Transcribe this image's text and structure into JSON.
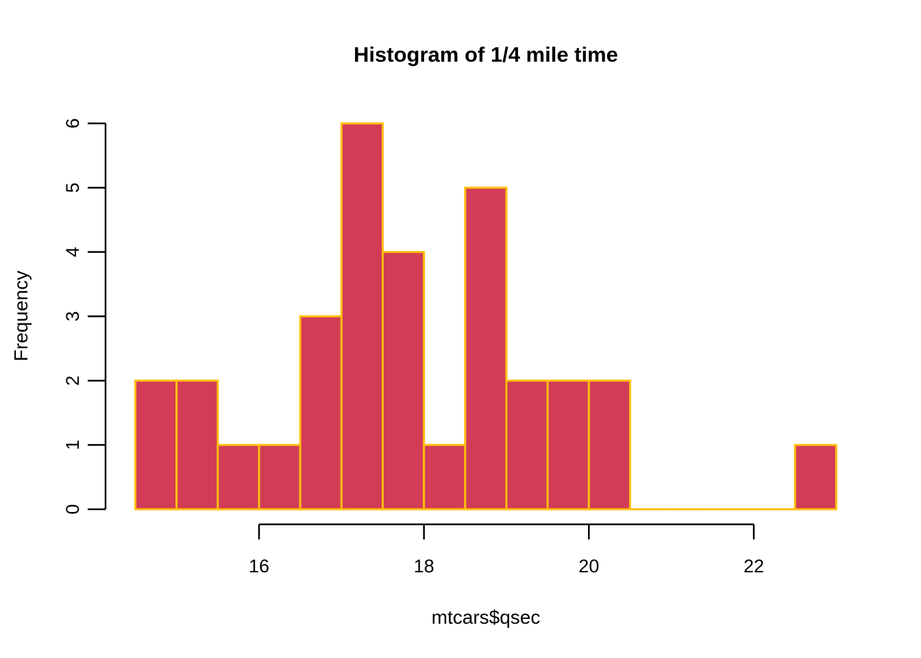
{
  "chart_data": {
    "type": "bar",
    "subtype": "histogram",
    "title": "Histogram of 1/4 mile time",
    "xlabel": "mtcars$qsec",
    "ylabel": "Frequency",
    "bin_edges": [
      14.5,
      15.0,
      15.5,
      16.0,
      16.5,
      17.0,
      17.5,
      18.0,
      18.5,
      19.0,
      19.5,
      20.0,
      20.5,
      21.0,
      21.5,
      22.0,
      22.5,
      23.0
    ],
    "counts": [
      2,
      2,
      1,
      1,
      3,
      6,
      4,
      1,
      5,
      2,
      2,
      2,
      0,
      0,
      0,
      0,
      1
    ],
    "x_ticks": [
      16,
      18,
      20,
      22
    ],
    "y_ticks": [
      0,
      1,
      2,
      3,
      4,
      5,
      6
    ],
    "xlim": [
      14.5,
      23.0
    ],
    "ylim": [
      0,
      6
    ],
    "grid": false,
    "legend": null,
    "colors": {
      "bar_fill": "#D23C57",
      "bar_border": "#FFBE10",
      "axis": "#000000",
      "text": "#000000",
      "background": "#FFFFFF"
    }
  }
}
